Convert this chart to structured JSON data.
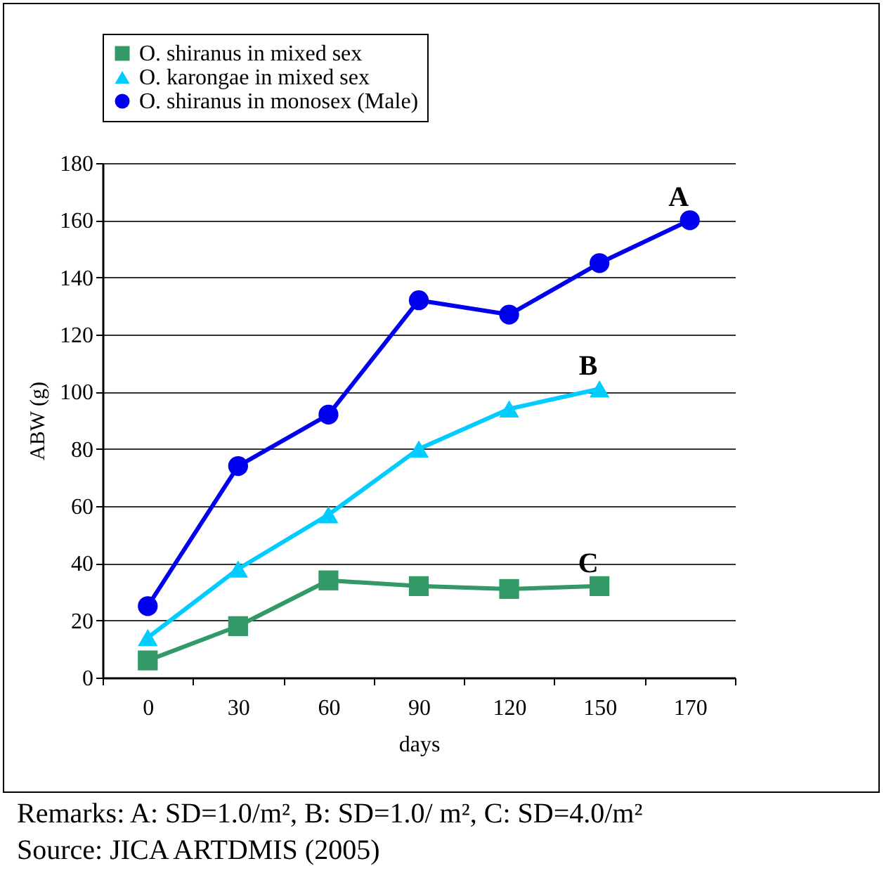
{
  "chart_data": {
    "type": "line",
    "xlabel": "days",
    "ylabel": "ABW (g)",
    "categories": [
      "0",
      "30",
      "60",
      "90",
      "120",
      "150",
      "170"
    ],
    "series": [
      {
        "name": "O. shiranus in mixed sex",
        "color": "#339966",
        "marker": "square",
        "values": [
          6,
          18,
          34,
          32,
          31,
          32,
          null
        ]
      },
      {
        "name": "O. karongae in mixed sex",
        "color": "#00ccff",
        "marker": "triangle",
        "values": [
          14,
          38,
          57,
          80,
          94,
          101,
          null
        ]
      },
      {
        "name": "O. shiranus in monosex (Male)",
        "color": "#0000ee",
        "marker": "circle",
        "values": [
          25,
          74,
          92,
          132,
          127,
          145,
          160
        ]
      }
    ],
    "ylim": [
      0,
      180
    ],
    "yticks": [
      0,
      20,
      40,
      60,
      80,
      100,
      120,
      140,
      160,
      180
    ],
    "grid": "y",
    "legend": "top",
    "annotations": [
      {
        "text": "A",
        "x": "170",
        "y": 160
      },
      {
        "text": "B",
        "x": "150",
        "y": 101
      },
      {
        "text": "C",
        "x": "150",
        "y": 32
      },
      "Remarks: A: SD=1.0/m², B: SD=1.0/ m², C: SD=4.0/m²",
      "Source: JICA ARTDMIS (2005)"
    ]
  }
}
